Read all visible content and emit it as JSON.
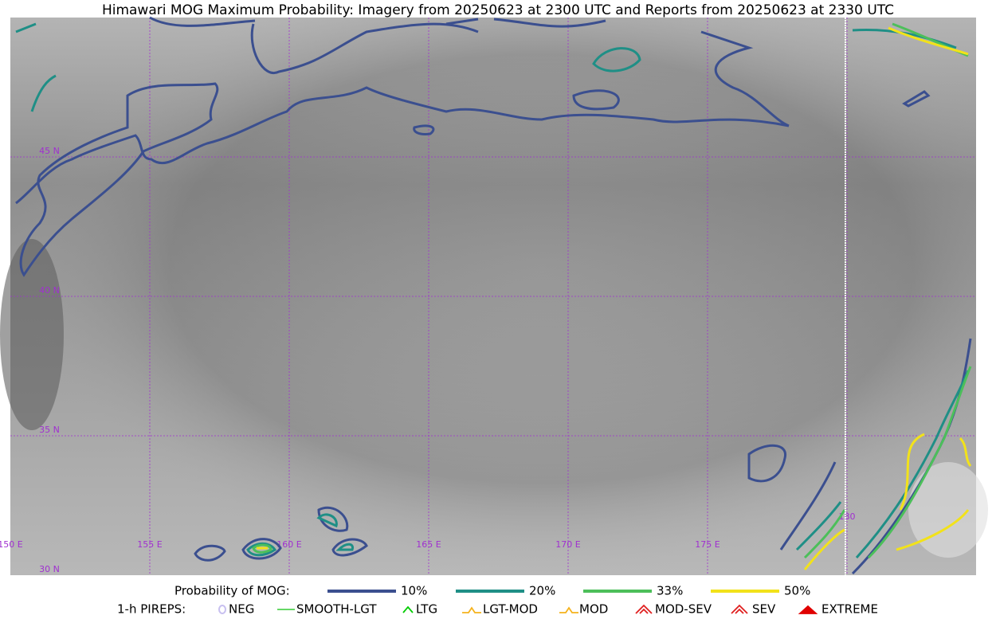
{
  "header": {
    "title": "Himawari MOG Maximum Probability: Imagery from 20250623 at 2300 UTC and Reports from 20250623 at 2330 UTC"
  },
  "map": {
    "lat_labels": [
      "45 N",
      "40 N",
      "35 N",
      "30 N"
    ],
    "lon_labels": [
      "150 E",
      "155 E",
      "160 E",
      "165 E",
      "170 E",
      "175 E",
      "180"
    ]
  },
  "legend": {
    "mog": {
      "title": "Probability of MOG:",
      "items": [
        {
          "label": "10%",
          "color": "#3b4f8f"
        },
        {
          "label": "20%",
          "color": "#1f8f86"
        },
        {
          "label": "33%",
          "color": "#4cbf5a"
        },
        {
          "label": "50%",
          "color": "#f2e21a"
        }
      ]
    },
    "pireps": {
      "title": "1-h PIREPS:",
      "items": [
        {
          "label": "NEG",
          "color": "#c8c0f0"
        },
        {
          "label": "SMOOTH-LGT",
          "color": "#33cc33"
        },
        {
          "label": "LTG",
          "color": "#00cc00"
        },
        {
          "label": "LGT-MOD",
          "color": "#f5b21c"
        },
        {
          "label": "MOD",
          "color": "#f5b21c"
        },
        {
          "label": "MOD-SEV",
          "color": "#e02020"
        },
        {
          "label": "SEV",
          "color": "#e02020"
        },
        {
          "label": "EXTREME",
          "color": "#e00000"
        }
      ]
    }
  }
}
